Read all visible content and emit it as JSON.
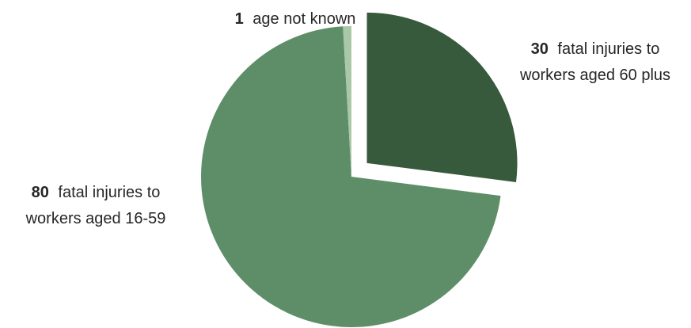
{
  "chart_data": {
    "type": "pie",
    "title": "",
    "slices": [
      {
        "id": "60plus",
        "value": 30,
        "color": "#385a3c",
        "exploded": true,
        "label_value": "30",
        "label_line1": "fatal injuries to",
        "label_line2": "workers aged 60 plus"
      },
      {
        "id": "16to59",
        "value": 80,
        "color": "#5e8e68",
        "exploded": false,
        "label_value": "80",
        "label_line1": "fatal injuries to",
        "label_line2": "workers aged 16-59"
      },
      {
        "id": "unknown",
        "value": 1,
        "color": "#a8c8a8",
        "exploded": false,
        "label_value": "1",
        "label_line1": "age not known",
        "label_line2": ""
      }
    ]
  }
}
